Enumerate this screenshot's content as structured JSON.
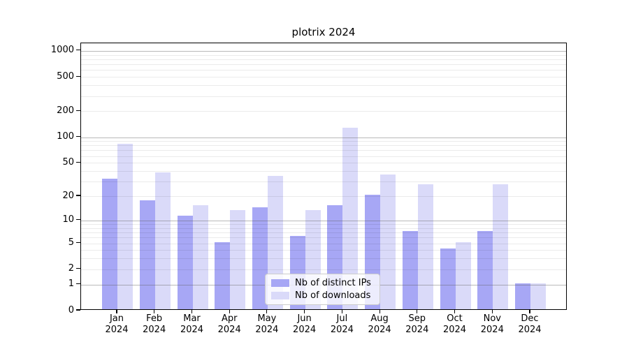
{
  "chart_data": {
    "type": "bar",
    "title": "plotrix 2024",
    "categories": [
      "Jan\n2024",
      "Feb\n2024",
      "Mar\n2024",
      "Apr\n2024",
      "May\n2024",
      "Jun\n2024",
      "Jul\n2024",
      "Aug\n2024",
      "Sep\n2024",
      "Oct\n2024",
      "Nov\n2024",
      "Dec\n2024"
    ],
    "series": [
      {
        "name": "Nb of distinct IPs",
        "color": "#a7a7f5",
        "values": [
          31,
          17,
          11,
          5,
          14,
          6,
          15,
          20,
          7,
          4,
          7,
          1
        ]
      },
      {
        "name": "Nb of downloads",
        "color": "#dadaf9",
        "values": [
          81,
          37,
          15,
          13,
          34,
          13,
          125,
          35,
          27,
          5,
          27,
          1
        ]
      }
    ],
    "xlabel": "",
    "ylabel": "",
    "y_axis": {
      "scale": "log10(value+1)",
      "tick_values": [
        0,
        1,
        2,
        5,
        10,
        20,
        50,
        100,
        200,
        500,
        1000
      ],
      "major_grid_values": [
        1,
        10,
        100,
        1000
      ],
      "minor_grid_values": [
        2,
        3,
        4,
        5,
        6,
        7,
        8,
        9,
        20,
        30,
        40,
        50,
        60,
        70,
        80,
        90,
        200,
        300,
        400,
        500,
        600,
        700,
        800,
        900
      ],
      "range_top_value": 1225
    },
    "grid": "on, drawn over bars",
    "legend": {
      "position": "lower center",
      "entries": [
        "Nb of distinct IPs",
        "Nb of downloads"
      ]
    },
    "colors": {
      "major_grid": "#b9b9b9",
      "minor_grid": "#ececec",
      "axis": "#000000",
      "background": "#ffffff"
    }
  }
}
